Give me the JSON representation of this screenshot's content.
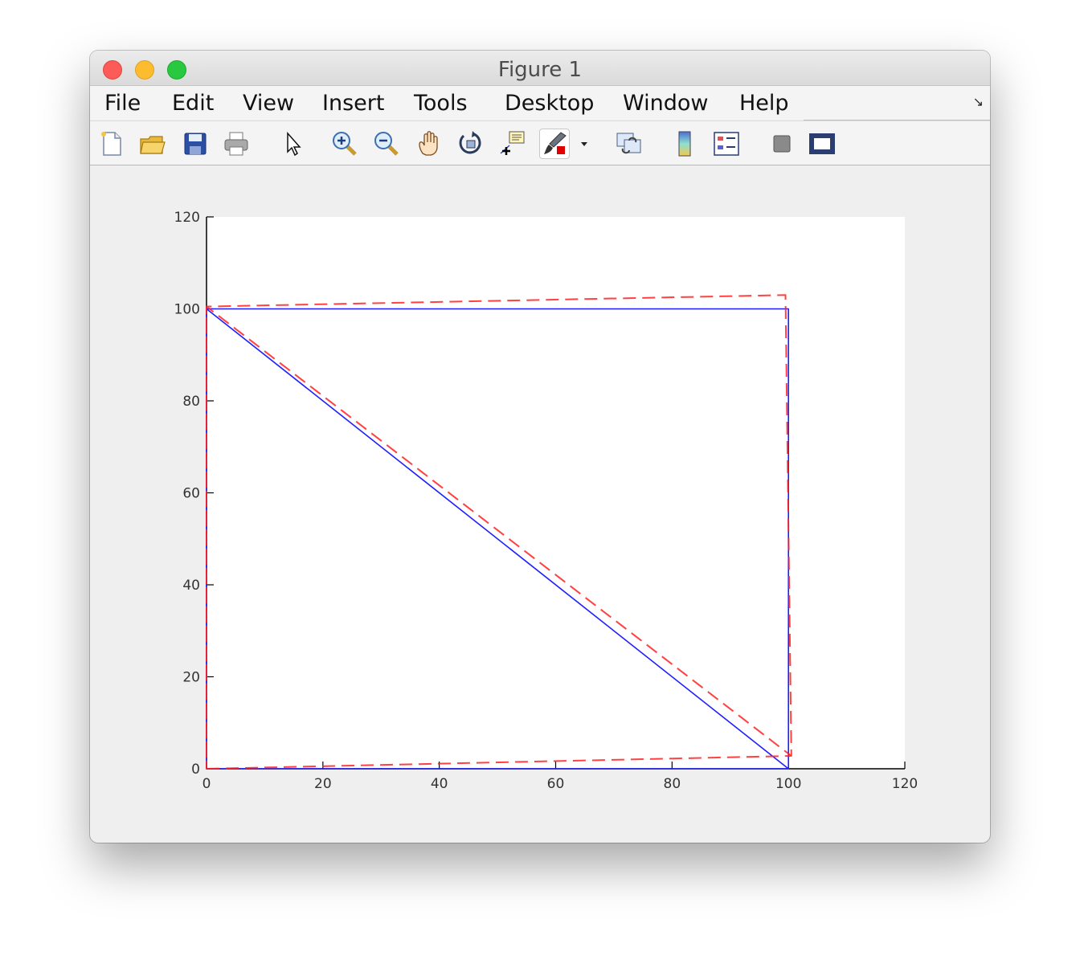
{
  "window": {
    "title": "Figure 1"
  },
  "menu": [
    "File",
    "Edit",
    "View",
    "Insert",
    "Tools",
    "Desktop",
    "Window",
    "Help"
  ],
  "toolbar": [
    "new-figure-icon",
    "open-file-icon",
    "save-icon",
    "print-icon",
    "edit-plot-arrow-icon",
    "zoom-in-icon",
    "zoom-out-icon",
    "pan-hand-icon",
    "rotate-3d-icon",
    "data-cursor-icon",
    "brush-icon",
    "brush-dropdown-icon",
    "link-plot-icon",
    "colorbar-icon",
    "legend-icon",
    "hide-plot-tools-icon",
    "show-plot-tools-icon"
  ],
  "colors": {
    "series_1": "#1f1fff",
    "series_2": "#ff2020"
  },
  "chart_data": {
    "type": "line",
    "xlim": [
      0,
      120
    ],
    "ylim": [
      0,
      120
    ],
    "xticks": [
      "0",
      "20",
      "40",
      "60",
      "80",
      "100",
      "120"
    ],
    "yticks": [
      "0",
      "20",
      "40",
      "60",
      "80",
      "100",
      "120"
    ],
    "grid": false,
    "series": [
      {
        "style": "solid",
        "color": "#1f1fff",
        "points": [
          [
            0,
            0
          ],
          [
            100,
            0
          ],
          [
            100,
            100
          ],
          [
            0,
            100
          ],
          [
            0,
            0
          ],
          [
            0,
            100
          ],
          [
            100,
            0
          ]
        ]
      },
      {
        "style": "dashed",
        "color": "#ff2020",
        "points": [
          [
            0,
            0
          ],
          [
            100.5,
            2.8
          ],
          [
            99.5,
            103
          ],
          [
            0,
            100.5
          ],
          [
            0,
            0
          ],
          [
            0,
            100.5
          ],
          [
            100.5,
            2.8
          ]
        ]
      }
    ]
  }
}
